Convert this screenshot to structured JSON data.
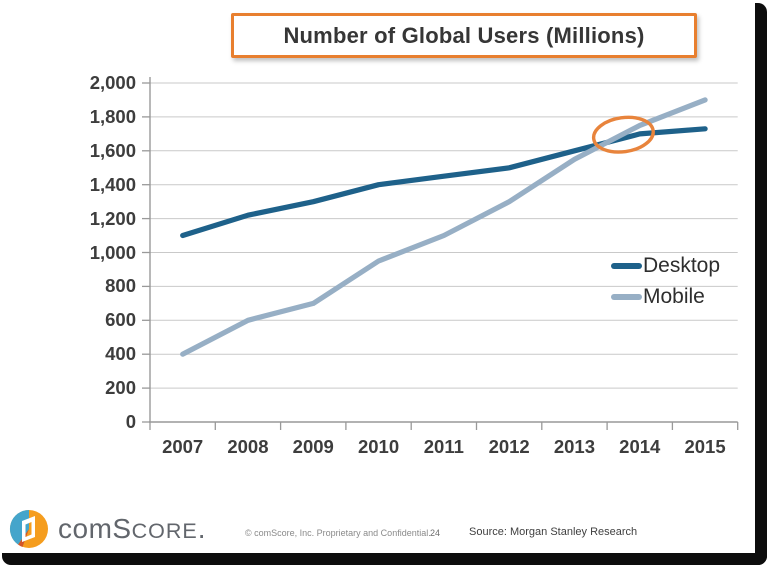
{
  "chart_data": {
    "type": "line",
    "title": "Number of Global Users (Millions)",
    "categories": [
      "2007",
      "2008",
      "2009",
      "2010",
      "2011",
      "2012",
      "2013",
      "2014",
      "2015"
    ],
    "series": [
      {
        "name": "Desktop",
        "color": "#1e618a",
        "values": [
          1100,
          1220,
          1300,
          1400,
          1450,
          1500,
          1600,
          1700,
          1730
        ]
      },
      {
        "name": "Mobile",
        "color": "#97afc5",
        "values": [
          400,
          600,
          700,
          950,
          1100,
          1300,
          1550,
          1750,
          1900
        ]
      }
    ],
    "ylim": [
      0,
      2000
    ],
    "ytick_step": 200,
    "ytick_labels": [
      "0",
      "200",
      "400",
      "600",
      "800",
      "1,000",
      "1,200",
      "1,400",
      "1,600",
      "1,800",
      "2,000"
    ],
    "xlabel": "",
    "ylabel": "",
    "grid": "horizontal",
    "legend_position": "right-inside",
    "annotation": {
      "shape": "ellipse",
      "meaning": "desktop-mobile crossover highlight",
      "color": "#e8843c",
      "center_year": 2013.75,
      "center_value": 1695
    },
    "accent_color": "#e87f2f"
  },
  "footer": {
    "copyright": "© comScore, Inc.  Proprietary and Confidential.",
    "page_number": "24",
    "source": "Source: Morgan Stanley Research"
  },
  "logo": {
    "part_com": "com",
    "part_s": "S",
    "part_core": "CORE",
    "part_dot": "."
  }
}
